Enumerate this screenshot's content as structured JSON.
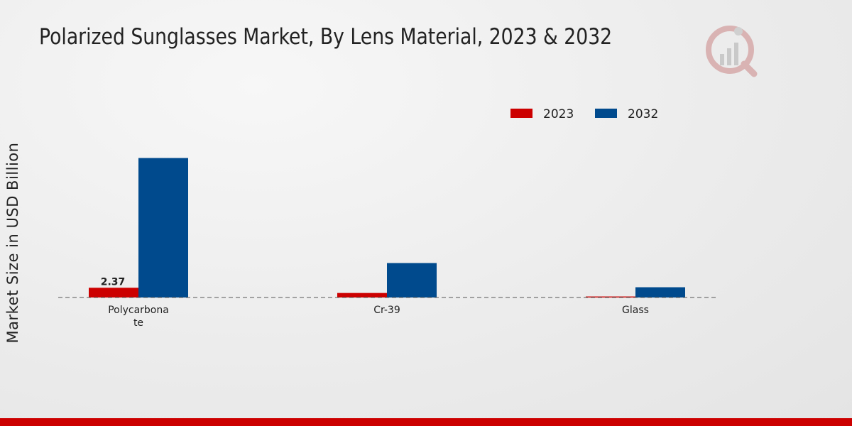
{
  "chart_data": {
    "type": "bar",
    "title": "Polarized Sunglasses Market, By Lens Material, 2023 & 2032",
    "ylabel": "Market Size in USD Billion",
    "xlabel": "",
    "categories": [
      "Polycarbonate",
      "Cr-39",
      "Glass"
    ],
    "category_lines": [
      [
        "Polycarbona",
        "te"
      ],
      [
        "Cr-39"
      ],
      [
        "Glass"
      ]
    ],
    "series": [
      {
        "name": "2023",
        "color": "#cc0000",
        "values": [
          2.37,
          1.1,
          0.25
        ]
      },
      {
        "name": "2032",
        "color": "#004a8d",
        "values": [
          34.0,
          8.4,
          2.5
        ]
      }
    ],
    "data_labels": [
      {
        "series": 0,
        "index": 0,
        "text": "2.37"
      }
    ],
    "ylim": [
      0,
      45
    ],
    "grid": false,
    "legend_position": "top-right"
  },
  "branding": {
    "logo_icon": "market-research-logo",
    "accent_color": "#cc0000"
  }
}
